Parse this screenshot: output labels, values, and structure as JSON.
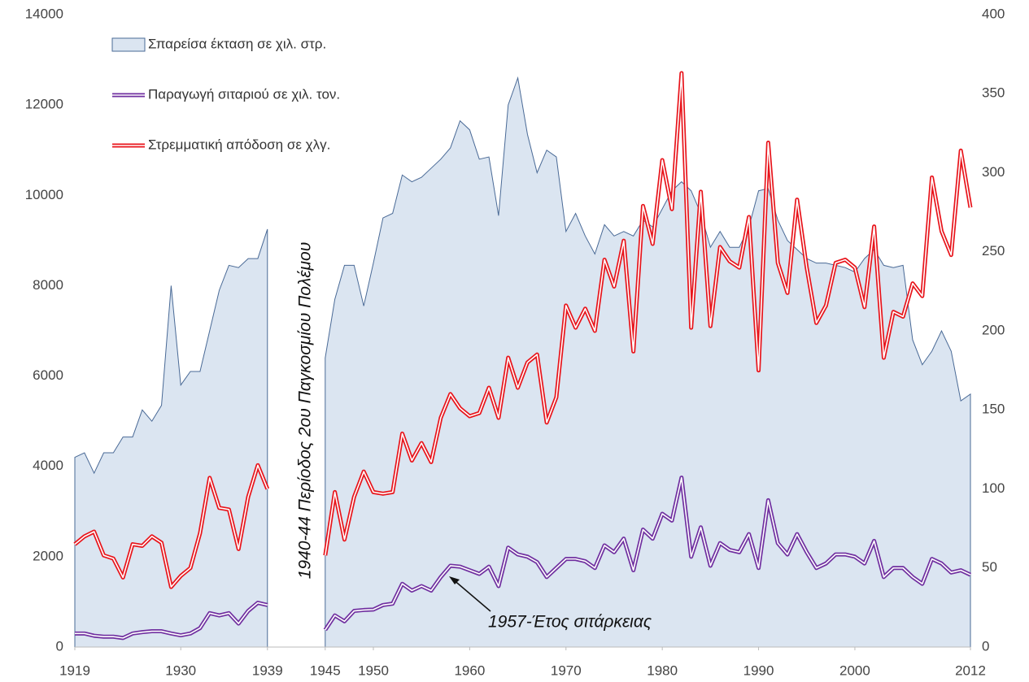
{
  "chart_data": {
    "type": "area_line",
    "x": [
      1919,
      1920,
      1921,
      1922,
      1923,
      1924,
      1925,
      1926,
      1927,
      1928,
      1929,
      1930,
      1931,
      1932,
      1933,
      1934,
      1935,
      1936,
      1937,
      1938,
      1939,
      1940,
      1941,
      1942,
      1943,
      1944,
      1945,
      1946,
      1947,
      1948,
      1949,
      1950,
      1951,
      1952,
      1953,
      1954,
      1955,
      1956,
      1957,
      1958,
      1959,
      1960,
      1961,
      1962,
      1963,
      1964,
      1965,
      1966,
      1967,
      1968,
      1969,
      1970,
      1971,
      1972,
      1973,
      1974,
      1975,
      1976,
      1977,
      1978,
      1979,
      1980,
      1981,
      1982,
      1983,
      1984,
      1985,
      1986,
      1987,
      1988,
      1989,
      1990,
      1991,
      1992,
      1993,
      1994,
      1995,
      1996,
      1997,
      1998,
      1999,
      2000,
      2001,
      2002,
      2003,
      2004,
      2005,
      2006,
      2007,
      2008,
      2009,
      2010,
      2011,
      2012
    ],
    "series": [
      {
        "name": "Σπαρείσα έκταση σε χιλ. στρ.",
        "kind": "area",
        "color": "#dbe5f1",
        "values": [
          4200,
          4300,
          3850,
          4300,
          4300,
          4650,
          4650,
          5250,
          5000,
          5350,
          8000,
          5800,
          6100,
          6100,
          7000,
          7900,
          8450,
          8400,
          8600,
          8600,
          9250,
          null,
          null,
          null,
          null,
          null,
          6400,
          7700,
          8450,
          8450,
          7550,
          8500,
          9500,
          9600,
          10450,
          10300,
          10400,
          10600,
          10800,
          11050,
          11650,
          11450,
          10800,
          10850,
          9550,
          12000,
          12600,
          11350,
          10500,
          11000,
          10850,
          9200,
          9600,
          9100,
          8700,
          9350,
          9100,
          9200,
          9100,
          9450,
          9300,
          9700,
          10100,
          10300,
          10100,
          9600,
          8850,
          9200,
          8850,
          8850,
          9300,
          10100,
          10150,
          9450,
          9000,
          8800,
          8600,
          8500,
          8500,
          8450,
          8400,
          8300,
          8600,
          8800,
          8450,
          8400,
          8450,
          6800,
          6250,
          6550,
          7000,
          6550,
          5450,
          5600
        ]
      },
      {
        "name": "Παραγωγή σιταριού σε χιλ. τον.",
        "kind": "line",
        "color": "#7030a0",
        "values": [
          300,
          300,
          250,
          230,
          230,
          200,
          300,
          330,
          350,
          350,
          300,
          260,
          300,
          420,
          750,
          700,
          750,
          520,
          800,
          980,
          930,
          null,
          null,
          null,
          null,
          null,
          380,
          700,
          570,
          800,
          820,
          830,
          930,
          960,
          1400,
          1250,
          1350,
          1250,
          1550,
          1800,
          1780,
          1700,
          1620,
          1780,
          1350,
          2200,
          2050,
          2000,
          1880,
          1550,
          1750,
          1950,
          1950,
          1900,
          1750,
          2250,
          2100,
          2400,
          1700,
          2600,
          2400,
          2950,
          2800,
          3750,
          2000,
          2650,
          1800,
          2300,
          2150,
          2100,
          2500,
          1750,
          3250,
          2300,
          2050,
          2500,
          2100,
          1750,
          1850,
          2050,
          2050,
          2000,
          1850,
          2350,
          1550,
          1750,
          1750,
          1550,
          1400,
          1950,
          1850,
          1650,
          1700,
          1600
        ]
      },
      {
        "name": "Στρεμματική απόδοση σε χλγ.",
        "kind": "line",
        "axis": "y2",
        "color": "#e8141b",
        "values": [
          65,
          70,
          73,
          58,
          56,
          44,
          65,
          64,
          70,
          66,
          38,
          45,
          50,
          72,
          107,
          88,
          87,
          62,
          95,
          115,
          100,
          null,
          null,
          null,
          null,
          null,
          58,
          98,
          68,
          95,
          111,
          98,
          97,
          98,
          135,
          118,
          129,
          117,
          145,
          160,
          151,
          146,
          148,
          164,
          145,
          183,
          164,
          180,
          185,
          142,
          158,
          216,
          202,
          214,
          200,
          245,
          228,
          257,
          187,
          279,
          255,
          308,
          277,
          363,
          202,
          288,
          203,
          253,
          244,
          240,
          272,
          175,
          319,
          243,
          224,
          283,
          240,
          205,
          216,
          243,
          245,
          240,
          215,
          266,
          183,
          212,
          209,
          230,
          222,
          297,
          263,
          248,
          314,
          278
        ]
      }
    ],
    "xlim": [
      1919,
      2012
    ],
    "xticks": [
      1919,
      1930,
      1939,
      1945,
      1950,
      1960,
      1970,
      1980,
      1990,
      2000,
      2012
    ],
    "ylim": [
      0,
      14000
    ],
    "yticks": [
      0,
      2000,
      4000,
      6000,
      8000,
      10000,
      12000,
      14000
    ],
    "y2lim": [
      0,
      400
    ],
    "y2ticks": [
      0,
      50,
      100,
      150,
      200,
      250,
      300,
      350,
      400
    ],
    "grid": false,
    "legend": "upper left",
    "annotations": [
      "1940-44 Περίοδος 2ου Παγκοσμίου Πολέμου",
      "1957-Έτος σιτάρκειας"
    ]
  }
}
